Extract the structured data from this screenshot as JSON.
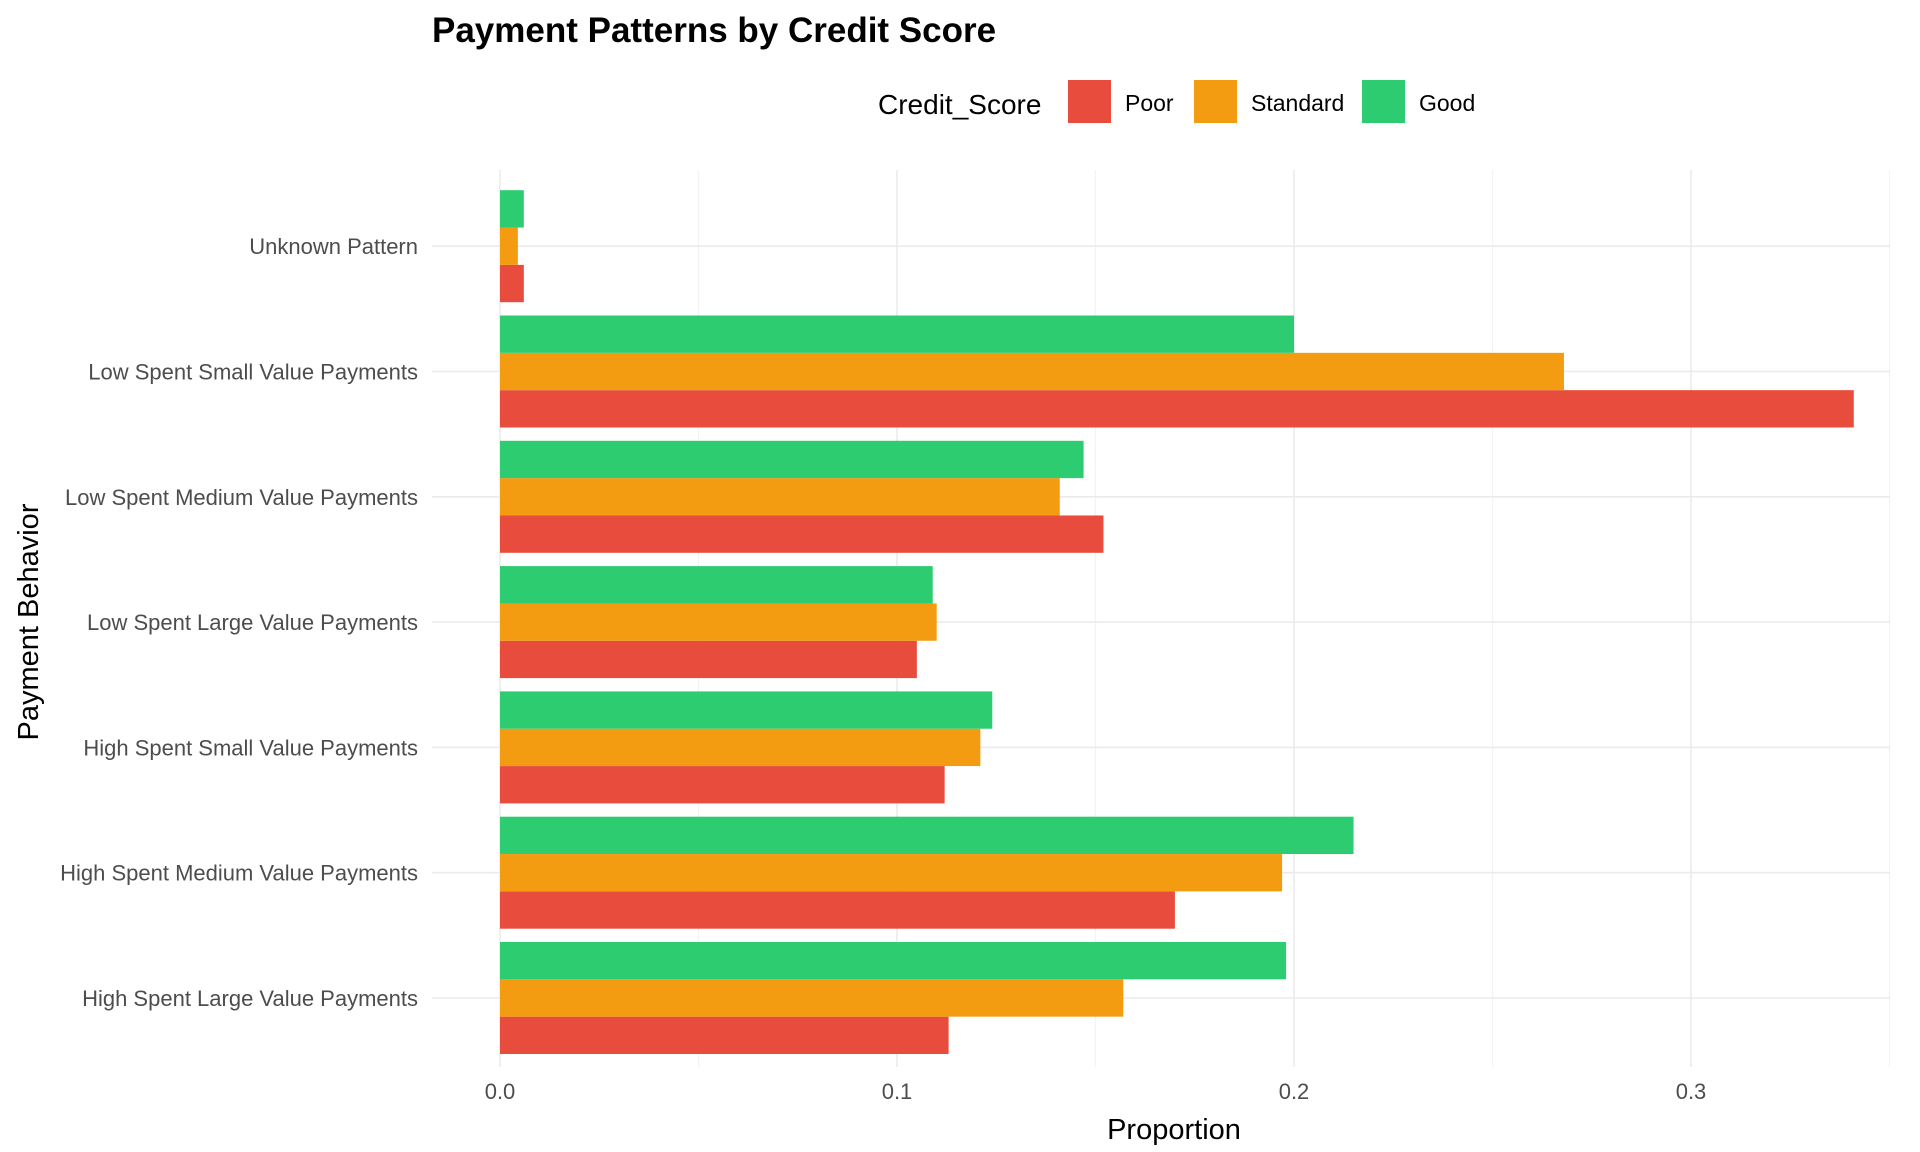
{
  "chart_data": {
    "type": "bar",
    "orientation": "horizontal",
    "title": "Payment Patterns by Credit Score",
    "xlabel": "Proportion",
    "ylabel": "Payment Behavior",
    "categories": [
      "High Spent Large Value Payments",
      "High Spent Medium Value Payments",
      "High Spent Small Value Payments",
      "Low Spent Large Value Payments",
      "Low Spent Medium Value Payments",
      "Low Spent Small Value Payments",
      "Unknown Pattern"
    ],
    "legend": {
      "title": "Credit_Score",
      "position": "top"
    },
    "series": [
      {
        "name": "Poor",
        "color": "#E74C3C",
        "values": [
          0.113,
          0.17,
          0.112,
          0.105,
          0.152,
          0.341,
          0.006
        ]
      },
      {
        "name": "Standard",
        "color": "#F39C12",
        "values": [
          0.157,
          0.197,
          0.121,
          0.11,
          0.141,
          0.268,
          0.0045
        ]
      },
      {
        "name": "Good",
        "color": "#2ECC71",
        "values": [
          0.198,
          0.215,
          0.124,
          0.109,
          0.147,
          0.2,
          0.006
        ]
      }
    ],
    "xlim": [
      0,
      0.35
    ],
    "xticks": [
      0.0,
      0.1,
      0.2,
      0.3
    ],
    "xtick_labels": [
      "0.0",
      "0.1",
      "0.2",
      "0.3"
    ],
    "grid": true
  }
}
